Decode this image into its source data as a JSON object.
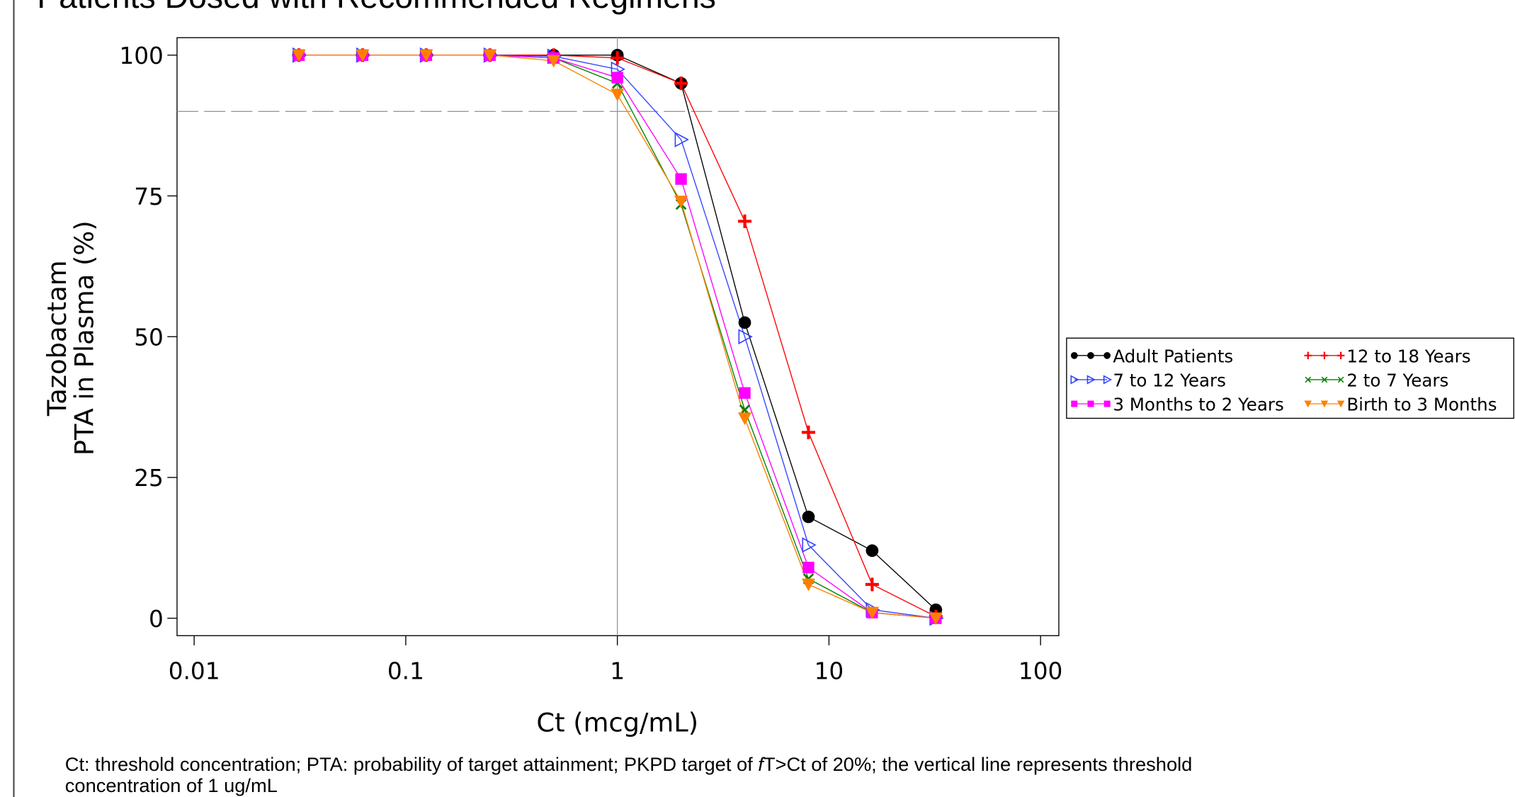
{
  "chart_data": {
    "type": "line",
    "title": "Patients Dosed with Recommended Regimens",
    "y_label": [
      "Tazobactam",
      "PTA in Plasma (%)"
    ],
    "x_label": "Ct (mcg/mL)",
    "footnote": [
      "Ct: threshold concentration; PTA: probability of target attainment; PKPD target of ",
      "f",
      "T>Ct of 20%; the vertical line represents threshold",
      "concentration of 1 ug/mL"
    ],
    "x_log": true,
    "x": [
      0.03125,
      0.0625,
      0.125,
      0.25,
      0.5,
      1,
      2,
      4,
      8,
      16,
      32
    ],
    "xlim": [
      0.0083,
      122
    ],
    "xticks": [
      0.01,
      0.1,
      1,
      10,
      100
    ],
    "ylim": [
      -3.1,
      103.1
    ],
    "yticks": [
      0,
      25,
      50,
      75,
      100
    ],
    "hline": 90,
    "vline": 1,
    "legend_position": "right",
    "series": [
      {
        "name": "Adult Patients",
        "color": "#000000",
        "marker": "circle",
        "values": [
          100,
          100,
          100,
          100,
          100,
          100,
          95,
          52.5,
          18,
          12,
          1.5
        ]
      },
      {
        "name": "12 to 18 Years",
        "color": "#ff0000",
        "marker": "plus",
        "values": [
          100,
          100,
          100,
          100,
          100,
          99.5,
          95,
          70.5,
          33,
          6,
          0.3
        ]
      },
      {
        "name": "7 to 12 Years",
        "color": "#3344ff",
        "marker": "triangle-right",
        "values": [
          100,
          100,
          100,
          100,
          99.8,
          97.5,
          85,
          50,
          13,
          1.5,
          0
        ]
      },
      {
        "name": "2 to 7 Years",
        "color": "#008000",
        "marker": "x",
        "values": [
          100,
          100,
          100,
          100,
          99.5,
          95,
          73.5,
          37,
          7,
          1,
          0
        ]
      },
      {
        "name": "3 Months to 2 Years",
        "color": "#ff00ff",
        "marker": "square",
        "values": [
          100,
          100,
          100,
          100,
          99.5,
          96,
          78,
          40,
          9,
          1,
          0
        ]
      },
      {
        "name": "Birth to 3 Months",
        "color": "#ff8000",
        "marker": "triangle-down",
        "values": [
          100,
          100,
          100,
          100,
          99,
          93,
          74,
          35.5,
          6,
          1,
          0
        ]
      }
    ]
  }
}
